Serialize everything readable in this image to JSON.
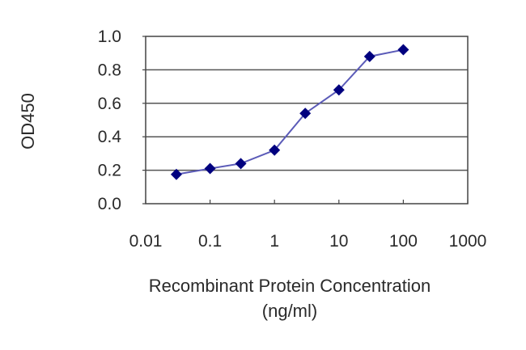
{
  "chart_data": {
    "type": "line",
    "title": "",
    "xlabel": "Recombinant Protein Concentration (ng/ml)",
    "xlabel_lines": [
      "Recombinant Protein Concentration",
      "(ng/ml)"
    ],
    "ylabel": "OD450",
    "xscale": "log",
    "xlim": [
      0.01,
      1000
    ],
    "ylim": [
      0.0,
      1.0
    ],
    "x_ticks": [
      "0.01",
      "0.1",
      "1",
      "10",
      "100",
      "1000"
    ],
    "y_ticks": [
      "0.0",
      "0.2",
      "0.4",
      "0.6",
      "0.8",
      "1.0"
    ],
    "grid": "horizontal",
    "legend": "none",
    "series": [
      {
        "name": "OD450",
        "color": "#00007f",
        "line_color": "#5b5bb8",
        "marker": "diamond",
        "x": [
          0.03,
          0.1,
          0.3,
          1,
          3,
          10,
          30,
          100
        ],
        "values": [
          0.175,
          0.21,
          0.24,
          0.32,
          0.54,
          0.68,
          0.88,
          0.92
        ]
      }
    ]
  }
}
